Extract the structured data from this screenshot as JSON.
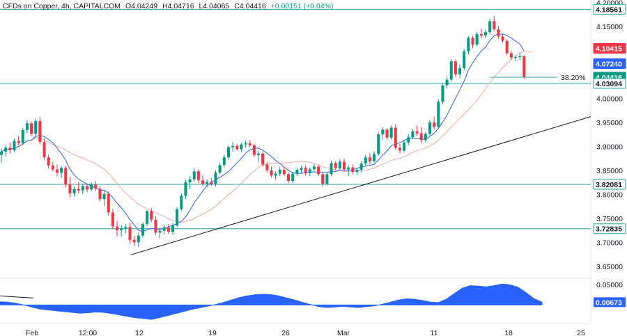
{
  "header": {
    "title": "CFDs on Copper, 4h, CAPITALCOM",
    "open": "O4.04249",
    "high": "H4.04716",
    "low": "L4.04065",
    "close": "C4.04416",
    "change": "+0.00151 (+0.04%)"
  },
  "chart_data": {
    "type": "candlestick",
    "x_ticks": [
      "Feb",
      "12:00",
      "12",
      "19",
      "26",
      "Mar",
      "11",
      "18",
      "25"
    ],
    "y_ticks": [
      "4.20000",
      "4.15000",
      "4.00000",
      "3.95000",
      "3.90000",
      "3.85000",
      "3.80000",
      "3.75000",
      "3.70000",
      "3.65000"
    ],
    "ylim": [
      3.625,
      4.205
    ],
    "horizontal_levels": [
      4.18561,
      4.03094,
      3.82081,
      3.72835
    ],
    "price_badges": [
      {
        "label": "4.18561",
        "value": 4.18561,
        "color": "#26a69a"
      },
      {
        "label": "4.10415",
        "value": 4.10415,
        "color": "#f23645"
      },
      {
        "label": "4.07240",
        "value": 4.0724,
        "color": "#2962ff"
      },
      {
        "label": "4.04416",
        "value": 4.04416,
        "color": "#089981"
      },
      {
        "label": "4.03094",
        "value": 4.03094,
        "color": "#26a69a"
      },
      {
        "label": "3.82081",
        "value": 3.82081,
        "color": "#26a69a"
      },
      {
        "label": "3.72835",
        "value": 3.72835,
        "color": "#26a69a"
      }
    ],
    "fib_label": "38.20%",
    "trendline": {
      "from": [
        "Feb 10",
        3.674
      ],
      "to": [
        "Mar 27",
        3.962
      ]
    },
    "candles": [
      [
        3.882,
        3.896,
        3.866,
        3.889
      ],
      [
        3.889,
        3.902,
        3.879,
        3.897
      ],
      [
        3.897,
        3.908,
        3.885,
        3.892
      ],
      [
        3.892,
        3.916,
        3.888,
        3.911
      ],
      [
        3.911,
        3.921,
        3.902,
        3.907
      ],
      [
        3.907,
        3.939,
        3.903,
        3.934
      ],
      [
        3.934,
        3.955,
        3.928,
        3.948
      ],
      [
        3.948,
        3.952,
        3.921,
        3.926
      ],
      [
        3.926,
        3.958,
        3.918,
        3.953
      ],
      [
        3.953,
        3.962,
        3.904,
        3.909
      ],
      [
        3.909,
        3.917,
        3.872,
        3.877
      ],
      [
        3.877,
        3.883,
        3.854,
        3.86
      ],
      [
        3.86,
        3.868,
        3.848,
        3.852
      ],
      [
        3.852,
        3.862,
        3.838,
        3.845
      ],
      [
        3.845,
        3.859,
        3.834,
        3.855
      ],
      [
        3.855,
        3.86,
        3.815,
        3.82
      ],
      [
        3.82,
        3.836,
        3.794,
        3.802
      ],
      [
        3.802,
        3.817,
        3.795,
        3.811
      ],
      [
        3.811,
        3.825,
        3.802,
        3.808
      ],
      [
        3.808,
        3.822,
        3.8,
        3.817
      ],
      [
        3.817,
        3.823,
        3.804,
        3.81
      ],
      [
        3.81,
        3.825,
        3.806,
        3.82
      ],
      [
        3.82,
        3.828,
        3.807,
        3.812
      ],
      [
        3.812,
        3.818,
        3.784,
        3.79
      ],
      [
        3.79,
        3.807,
        3.776,
        3.801
      ],
      [
        3.801,
        3.806,
        3.756,
        3.762
      ],
      [
        3.762,
        3.77,
        3.727,
        3.733
      ],
      [
        3.733,
        3.745,
        3.712,
        3.725
      ],
      [
        3.725,
        3.736,
        3.712,
        3.729
      ],
      [
        3.729,
        3.738,
        3.719,
        3.732
      ],
      [
        3.732,
        3.74,
        3.698,
        3.705
      ],
      [
        3.705,
        3.713,
        3.692,
        3.7
      ],
      [
        3.7,
        3.72,
        3.69,
        3.714
      ],
      [
        3.714,
        3.742,
        3.71,
        3.738
      ],
      [
        3.738,
        3.768,
        3.734,
        3.765
      ],
      [
        3.765,
        3.771,
        3.742,
        3.747
      ],
      [
        3.747,
        3.754,
        3.715,
        3.72
      ],
      [
        3.72,
        3.73,
        3.708,
        3.724
      ],
      [
        3.724,
        3.737,
        3.716,
        3.731
      ],
      [
        3.731,
        3.738,
        3.718,
        3.722
      ],
      [
        3.722,
        3.74,
        3.715,
        3.735
      ],
      [
        3.735,
        3.773,
        3.731,
        3.769
      ],
      [
        3.769,
        3.802,
        3.765,
        3.797
      ],
      [
        3.797,
        3.83,
        3.79,
        3.825
      ],
      [
        3.825,
        3.839,
        3.811,
        3.831
      ],
      [
        3.831,
        3.855,
        3.827,
        3.848
      ],
      [
        3.848,
        3.852,
        3.823,
        3.829
      ],
      [
        3.829,
        3.84,
        3.817,
        3.822
      ],
      [
        3.822,
        3.831,
        3.814,
        3.826
      ],
      [
        3.826,
        3.834,
        3.818,
        3.821
      ],
      [
        3.821,
        3.85,
        3.817,
        3.845
      ],
      [
        3.845,
        3.866,
        3.841,
        3.861
      ],
      [
        3.861,
        3.882,
        3.856,
        3.877
      ],
      [
        3.877,
        3.902,
        3.872,
        3.898
      ],
      [
        3.898,
        3.909,
        3.889,
        3.901
      ],
      [
        3.901,
        3.905,
        3.891,
        3.894
      ],
      [
        3.894,
        3.908,
        3.888,
        3.904
      ],
      [
        3.904,
        3.912,
        3.898,
        3.906
      ],
      [
        3.906,
        3.913,
        3.899,
        3.902
      ],
      [
        3.902,
        3.906,
        3.877,
        3.882
      ],
      [
        3.882,
        3.891,
        3.868,
        3.885
      ],
      [
        3.885,
        3.89,
        3.858,
        3.862
      ],
      [
        3.862,
        3.868,
        3.845,
        3.85
      ],
      [
        3.85,
        3.858,
        3.835,
        3.839
      ],
      [
        3.839,
        3.848,
        3.83,
        3.843
      ],
      [
        3.843,
        3.856,
        3.838,
        3.851
      ],
      [
        3.851,
        3.858,
        3.838,
        3.842
      ],
      [
        3.842,
        3.846,
        3.823,
        3.828
      ],
      [
        3.828,
        3.847,
        3.824,
        3.843
      ],
      [
        3.843,
        3.855,
        3.838,
        3.851
      ],
      [
        3.851,
        3.859,
        3.845,
        3.855
      ],
      [
        3.855,
        3.86,
        3.839,
        3.844
      ],
      [
        3.844,
        3.856,
        3.838,
        3.852
      ],
      [
        3.852,
        3.863,
        3.846,
        3.858
      ],
      [
        3.858,
        3.861,
        3.838,
        3.842
      ],
      [
        3.842,
        3.848,
        3.816,
        3.822
      ],
      [
        3.822,
        3.846,
        3.818,
        3.842
      ],
      [
        3.842,
        3.87,
        3.838,
        3.865
      ],
      [
        3.865,
        3.869,
        3.85,
        3.854
      ],
      [
        3.854,
        3.873,
        3.85,
        3.868
      ],
      [
        3.868,
        3.874,
        3.848,
        3.852
      ],
      [
        3.852,
        3.861,
        3.838,
        3.856
      ],
      [
        3.856,
        3.862,
        3.842,
        3.847
      ],
      [
        3.847,
        3.855,
        3.84,
        3.851
      ],
      [
        3.851,
        3.869,
        3.846,
        3.864
      ],
      [
        3.864,
        3.882,
        3.86,
        3.877
      ],
      [
        3.877,
        3.886,
        3.862,
        3.869
      ],
      [
        3.869,
        3.89,
        3.866,
        3.884
      ],
      [
        3.884,
        3.93,
        3.88,
        3.925
      ],
      [
        3.925,
        3.94,
        3.914,
        3.935
      ],
      [
        3.935,
        3.938,
        3.912,
        3.918
      ],
      [
        3.918,
        3.944,
        3.914,
        3.939
      ],
      [
        3.939,
        3.946,
        3.892,
        3.897
      ],
      [
        3.897,
        3.905,
        3.885,
        3.891
      ],
      [
        3.891,
        3.912,
        3.887,
        3.908
      ],
      [
        3.908,
        3.925,
        3.902,
        3.919
      ],
      [
        3.919,
        3.936,
        3.915,
        3.931
      ],
      [
        3.931,
        3.943,
        3.922,
        3.927
      ],
      [
        3.927,
        3.94,
        3.907,
        3.913
      ],
      [
        3.913,
        3.93,
        3.909,
        3.926
      ],
      [
        3.926,
        3.955,
        3.922,
        3.95
      ],
      [
        3.95,
        3.962,
        3.935,
        3.941
      ],
      [
        3.941,
        3.998,
        3.937,
        3.993
      ],
      [
        3.993,
        4.032,
        3.988,
        4.027
      ],
      [
        4.027,
        4.045,
        4.02,
        4.039
      ],
      [
        4.039,
        4.082,
        4.035,
        4.077
      ],
      [
        4.077,
        4.082,
        4.045,
        4.05
      ],
      [
        4.05,
        4.07,
        4.042,
        4.063
      ],
      [
        4.063,
        4.103,
        4.058,
        4.098
      ],
      [
        4.098,
        4.13,
        4.092,
        4.126
      ],
      [
        4.126,
        4.13,
        4.105,
        4.112
      ],
      [
        4.112,
        4.139,
        4.108,
        4.134
      ],
      [
        4.134,
        4.145,
        4.125,
        4.131
      ],
      [
        4.131,
        4.143,
        4.126,
        4.138
      ],
      [
        4.138,
        4.166,
        4.133,
        4.161
      ],
      [
        4.161,
        4.172,
        4.14,
        4.144
      ],
      [
        4.144,
        4.151,
        4.124,
        4.129
      ],
      [
        4.129,
        4.135,
        4.115,
        4.12
      ],
      [
        4.12,
        4.124,
        4.09,
        4.094
      ],
      [
        4.094,
        4.099,
        4.08,
        4.085
      ],
      [
        4.085,
        4.09,
        4.078,
        4.086
      ],
      [
        4.086,
        4.095,
        4.08,
        4.088
      ],
      [
        4.088,
        4.09,
        4.04,
        4.044
      ]
    ],
    "oscillator": {
      "ylim": [
        -0.045,
        0.065
      ],
      "y_ticks": [
        "0.05000"
      ],
      "last_label": "0.00673",
      "last_value": 0.00673,
      "values": [
        0.008,
        0.007,
        0.004,
        0.0,
        -0.005,
        -0.01,
        -0.012,
        -0.014,
        -0.016,
        -0.018,
        -0.02,
        -0.019,
        -0.017,
        -0.018,
        -0.021,
        -0.024,
        -0.028,
        -0.031,
        -0.033,
        -0.035,
        -0.031,
        -0.026,
        -0.021,
        -0.016,
        -0.011,
        -0.007,
        -0.003,
        0.001,
        0.006,
        0.012,
        0.018,
        0.022,
        0.025,
        0.026,
        0.025,
        0.022,
        0.017,
        0.012,
        0.006,
        0.001,
        -0.004,
        -0.006,
        -0.005,
        -0.003,
        -0.005,
        -0.006,
        -0.004,
        -0.002,
        0.002,
        0.007,
        0.012,
        0.015,
        0.014,
        0.011,
        0.007,
        0.006,
        0.014,
        0.028,
        0.041,
        0.047,
        0.046,
        0.044,
        0.047,
        0.051,
        0.049,
        0.043,
        0.03,
        0.015,
        0.007
      ],
      "line_values": [
        0.022,
        0.017
      ]
    }
  },
  "icons": {
    "price_axis": "price-scale",
    "time_axis": "time-scale"
  },
  "colors": {
    "up": "#089981",
    "down": "#f23645",
    "sma_fast": "#2962ff",
    "sma_slow": "#f7a5a3",
    "level": "#26a69a",
    "trendline": "#131722",
    "oscillator": "#2962ff"
  }
}
